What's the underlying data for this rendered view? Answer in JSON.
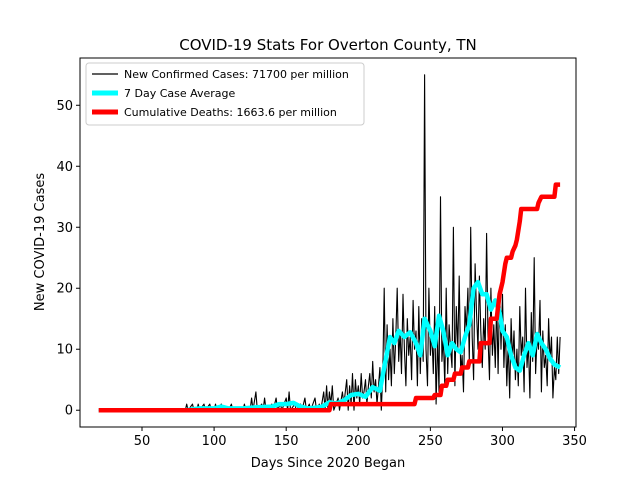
{
  "chart_data": {
    "type": "line",
    "title": "COVID-19 Stats For Overton County, TN",
    "xlabel": "Days Since 2020 Began",
    "ylabel": "New COVID-19 Cases",
    "xlim": [
      7,
      351
    ],
    "ylim": [
      -2.75,
      57.75
    ],
    "x_ticks": [
      50,
      100,
      150,
      200,
      250,
      300,
      350
    ],
    "y_ticks": [
      0,
      10,
      20,
      30,
      40,
      50
    ],
    "grid": false,
    "legend_position": "top-left",
    "series": [
      {
        "name": "New Confirmed Cases: 71700 per million",
        "color": "#000000",
        "style": "thin",
        "points": [
          [
            20,
            0
          ],
          [
            80,
            0
          ],
          [
            81,
            1
          ],
          [
            82,
            0
          ],
          [
            85,
            1
          ],
          [
            86,
            0
          ],
          [
            88,
            0
          ],
          [
            89,
            1
          ],
          [
            90,
            0
          ],
          [
            93,
            1
          ],
          [
            94,
            0
          ],
          [
            97,
            1
          ],
          [
            98,
            0
          ],
          [
            100,
            0
          ],
          [
            101,
            1
          ],
          [
            102,
            0
          ],
          [
            105,
            1
          ],
          [
            106,
            0
          ],
          [
            110,
            0
          ],
          [
            112,
            1
          ],
          [
            113,
            0
          ],
          [
            120,
            0
          ],
          [
            121,
            1
          ],
          [
            122,
            0
          ],
          [
            125,
            0
          ],
          [
            126,
            2
          ],
          [
            127,
            0
          ],
          [
            129,
            3
          ],
          [
            130,
            0
          ],
          [
            133,
            1
          ],
          [
            134,
            0
          ],
          [
            135,
            2
          ],
          [
            136,
            0
          ],
          [
            140,
            1
          ],
          [
            141,
            0
          ],
          [
            143,
            2
          ],
          [
            144,
            0
          ],
          [
            146,
            1
          ],
          [
            147,
            0
          ],
          [
            150,
            2
          ],
          [
            151,
            0
          ],
          [
            152,
            3
          ],
          [
            153,
            0
          ],
          [
            156,
            1
          ],
          [
            157,
            0
          ],
          [
            160,
            1
          ],
          [
            161,
            0
          ],
          [
            163,
            2
          ],
          [
            164,
            0
          ],
          [
            166,
            1
          ],
          [
            167,
            0
          ],
          [
            170,
            2
          ],
          [
            171,
            0
          ],
          [
            173,
            1
          ],
          [
            174,
            0
          ],
          [
            176,
            3
          ],
          [
            177,
            0
          ],
          [
            178,
            4
          ],
          [
            179,
            0
          ],
          [
            180,
            3
          ],
          [
            181,
            1
          ],
          [
            182,
            4
          ],
          [
            183,
            0
          ],
          [
            186,
            2
          ],
          [
            187,
            0
          ],
          [
            189,
            3
          ],
          [
            190,
            1
          ],
          [
            192,
            5
          ],
          [
            193,
            0
          ],
          [
            194,
            4
          ],
          [
            195,
            1
          ],
          [
            196,
            6
          ],
          [
            197,
            0
          ],
          [
            198,
            5
          ],
          [
            199,
            2
          ],
          [
            200,
            4
          ],
          [
            201,
            1
          ],
          [
            202,
            6
          ],
          [
            203,
            2
          ],
          [
            204,
            3
          ],
          [
            205,
            5
          ],
          [
            206,
            1
          ],
          [
            207,
            4
          ],
          [
            208,
            6
          ],
          [
            209,
            2
          ],
          [
            210,
            8
          ],
          [
            211,
            3
          ],
          [
            212,
            5
          ],
          [
            213,
            1
          ],
          [
            214,
            4
          ],
          [
            215,
            7
          ],
          [
            216,
            0
          ],
          [
            217,
            6
          ],
          [
            218,
            20
          ],
          [
            219,
            3
          ],
          [
            220,
            14
          ],
          [
            221,
            5
          ],
          [
            222,
            10
          ],
          [
            223,
            4
          ],
          [
            224,
            15
          ],
          [
            225,
            6
          ],
          [
            226,
            12
          ],
          [
            227,
            20
          ],
          [
            228,
            8
          ],
          [
            229,
            13
          ],
          [
            230,
            6
          ],
          [
            231,
            19
          ],
          [
            232,
            10
          ],
          [
            233,
            4
          ],
          [
            234,
            15
          ],
          [
            235,
            9
          ],
          [
            236,
            12
          ],
          [
            237,
            5
          ],
          [
            238,
            18
          ],
          [
            239,
            10
          ],
          [
            240,
            13
          ],
          [
            241,
            4
          ],
          [
            242,
            17
          ],
          [
            243,
            6
          ],
          [
            244,
            15
          ],
          [
            245,
            8
          ],
          [
            246,
            55
          ],
          [
            247,
            10
          ],
          [
            248,
            4
          ],
          [
            249,
            20
          ],
          [
            250,
            9
          ],
          [
            251,
            13
          ],
          [
            252,
            6
          ],
          [
            253,
            17
          ],
          [
            254,
            1
          ],
          [
            255,
            12
          ],
          [
            256,
            3
          ],
          [
            257,
            35
          ],
          [
            258,
            8
          ],
          [
            259,
            12
          ],
          [
            260,
            4
          ],
          [
            261,
            20
          ],
          [
            262,
            6
          ],
          [
            263,
            14
          ],
          [
            264,
            10
          ],
          [
            265,
            7
          ],
          [
            266,
            30
          ],
          [
            267,
            4
          ],
          [
            268,
            17
          ],
          [
            269,
            10
          ],
          [
            270,
            22
          ],
          [
            271,
            6
          ],
          [
            272,
            9
          ],
          [
            273,
            3
          ],
          [
            274,
            17
          ],
          [
            275,
            13
          ],
          [
            276,
            20
          ],
          [
            277,
            8
          ],
          [
            278,
            30
          ],
          [
            279,
            12
          ],
          [
            280,
            5
          ],
          [
            281,
            24
          ],
          [
            282,
            16
          ],
          [
            283,
            10
          ],
          [
            284,
            22
          ],
          [
            285,
            13
          ],
          [
            286,
            7
          ],
          [
            287,
            15
          ],
          [
            288,
            10
          ],
          [
            289,
            29
          ],
          [
            290,
            12
          ],
          [
            291,
            5
          ],
          [
            292,
            20
          ],
          [
            293,
            9
          ],
          [
            294,
            14
          ],
          [
            295,
            7
          ],
          [
            296,
            18
          ],
          [
            297,
            6
          ],
          [
            298,
            20
          ],
          [
            299,
            10
          ],
          [
            300,
            19
          ],
          [
            301,
            7
          ],
          [
            302,
            14
          ],
          [
            303,
            4
          ],
          [
            304,
            11
          ],
          [
            305,
            2
          ],
          [
            306,
            15
          ],
          [
            307,
            8
          ],
          [
            308,
            13
          ],
          [
            309,
            5
          ],
          [
            310,
            10
          ],
          [
            311,
            4
          ],
          [
            312,
            17
          ],
          [
            313,
            9
          ],
          [
            314,
            12
          ],
          [
            315,
            3
          ],
          [
            316,
            20
          ],
          [
            317,
            7
          ],
          [
            318,
            11
          ],
          [
            319,
            2
          ],
          [
            320,
            16
          ],
          [
            321,
            8
          ],
          [
            322,
            25
          ],
          [
            323,
            6
          ],
          [
            324,
            12
          ],
          [
            325,
            10
          ],
          [
            326,
            18
          ],
          [
            327,
            3
          ],
          [
            328,
            13
          ],
          [
            329,
            7
          ],
          [
            330,
            9
          ],
          [
            331,
            4
          ],
          [
            332,
            15
          ],
          [
            333,
            8
          ],
          [
            334,
            12
          ],
          [
            335,
            2
          ],
          [
            336,
            7
          ],
          [
            337,
            5
          ],
          [
            338,
            12
          ],
          [
            339,
            6
          ],
          [
            340,
            12
          ]
        ]
      },
      {
        "name": "7 Day Case Average",
        "color": "#00ffff",
        "style": "thick",
        "points": [
          [
            20,
            0
          ],
          [
            80,
            0
          ],
          [
            90,
            0.3
          ],
          [
            100,
            0.3
          ],
          [
            105,
            0.6
          ],
          [
            110,
            0.3
          ],
          [
            120,
            0.3
          ],
          [
            130,
            0.5
          ],
          [
            140,
            0.6
          ],
          [
            145,
            1
          ],
          [
            150,
            1
          ],
          [
            155,
            1.2
          ],
          [
            160,
            0.6
          ],
          [
            165,
            0.3
          ],
          [
            170,
            0.4
          ],
          [
            175,
            0.6
          ],
          [
            180,
            1.3
          ],
          [
            185,
            1.1
          ],
          [
            190,
            1.6
          ],
          [
            195,
            2.5
          ],
          [
            200,
            2.7
          ],
          [
            205,
            2.2
          ],
          [
            210,
            3.8
          ],
          [
            215,
            3.2
          ],
          [
            218,
            7
          ],
          [
            222,
            12
          ],
          [
            225,
            11
          ],
          [
            228,
            13
          ],
          [
            232,
            12
          ],
          [
            236,
            12.8
          ],
          [
            240,
            11
          ],
          [
            243,
            9
          ],
          [
            246,
            15
          ],
          [
            250,
            13
          ],
          [
            253,
            10.5
          ],
          [
            256,
            15.5
          ],
          [
            259,
            13
          ],
          [
            262,
            9
          ],
          [
            265,
            11
          ],
          [
            268,
            10
          ],
          [
            271,
            9.5
          ],
          [
            274,
            12
          ],
          [
            277,
            14
          ],
          [
            280,
            20
          ],
          [
            283,
            21
          ],
          [
            286,
            19
          ],
          [
            289,
            19
          ],
          [
            292,
            16.5
          ],
          [
            295,
            18
          ],
          [
            298,
            16
          ],
          [
            300,
            13
          ],
          [
            303,
            12
          ],
          [
            306,
            9
          ],
          [
            309,
            7
          ],
          [
            312,
            6.5
          ],
          [
            315,
            9
          ],
          [
            318,
            11
          ],
          [
            321,
            9
          ],
          [
            324,
            12.5
          ],
          [
            327,
            11
          ],
          [
            330,
            10
          ],
          [
            333,
            8.5
          ],
          [
            336,
            7.5
          ],
          [
            340,
            7
          ]
        ]
      },
      {
        "name": "Cumulative Deaths: 1663.6 per million",
        "color": "#ff0000",
        "style": "thick",
        "points": [
          [
            20,
            0
          ],
          [
            180,
            0
          ],
          [
            181,
            1
          ],
          [
            239,
            1
          ],
          [
            240,
            2
          ],
          [
            252,
            2
          ],
          [
            253,
            2.5
          ],
          [
            257,
            2.5
          ],
          [
            258,
            4
          ],
          [
            261,
            4
          ],
          [
            262,
            5
          ],
          [
            266,
            5
          ],
          [
            267,
            6
          ],
          [
            271,
            6
          ],
          [
            272,
            7
          ],
          [
            276,
            7
          ],
          [
            277,
            8
          ],
          [
            284,
            8
          ],
          [
            285,
            11
          ],
          [
            291,
            11
          ],
          [
            292,
            15
          ],
          [
            296,
            15
          ],
          [
            297,
            17
          ],
          [
            298,
            19
          ],
          [
            300,
            21
          ],
          [
            302,
            24
          ],
          [
            303,
            25
          ],
          [
            306,
            25
          ],
          [
            307,
            26
          ],
          [
            309,
            27
          ],
          [
            310,
            28
          ],
          [
            312,
            31
          ],
          [
            313,
            33
          ],
          [
            324,
            33
          ],
          [
            325,
            34
          ],
          [
            327,
            35
          ],
          [
            336,
            35
          ],
          [
            337,
            37
          ],
          [
            340,
            37
          ]
        ]
      }
    ]
  }
}
